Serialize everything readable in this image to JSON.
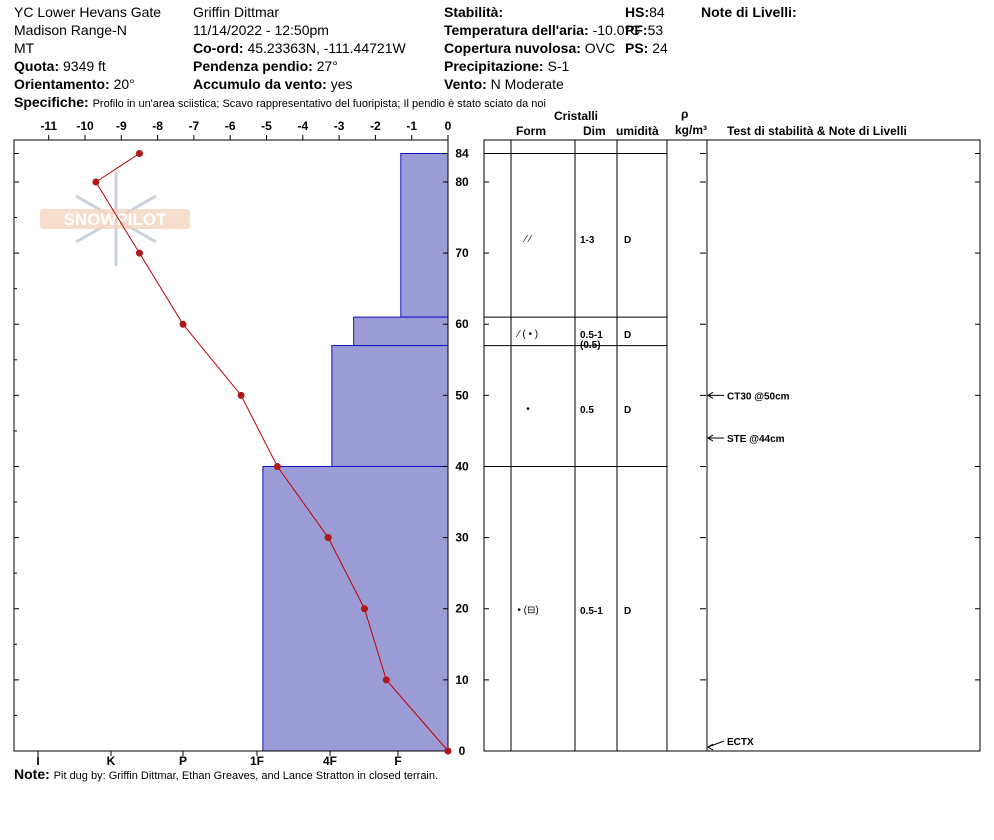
{
  "header": {
    "location": "YC Lower Hevans Gate",
    "range": "Madison Range-N",
    "state": "MT",
    "quota_label": "Quota:",
    "quota_value": "9349 ft",
    "orient_label": "Orientamento:",
    "orient_value": "20°",
    "observer": "Griffin Dittmar",
    "datetime": "11/14/2022 - 12:50pm",
    "coord_label": "Co-ord:",
    "coord_value": "45.23363N, -111.44721W",
    "slope_label": "Pendenza pendio:",
    "slope_value": "27°",
    "wind_load_label": "Accumulo da vento:",
    "wind_load_value": "yes",
    "stability_label": "Stabilità:",
    "stability_value": "",
    "air_temp_label": "Temperatura dell'aria:",
    "air_temp_value": "-10.0°C",
    "cloud_label": "Copertura nuvolosa:",
    "cloud_value": "OVC",
    "precip_label": "Precipitazione:",
    "precip_value": "S-1",
    "wind_label": "Vento:",
    "wind_value": "N Moderate",
    "hs_label": "HS:",
    "hs_value": "84",
    "pf_label": "PF:",
    "pf_value": "53",
    "ps_label": "PS:",
    "ps_value": "24",
    "notes_label": "Note di Livelli:",
    "spec_label": "Specifiche:",
    "spec_value": "Profilo in un'area sciistica; Scavo rappresentativo del fuoripista; Il pendio è stato sciato da noi",
    "footer_label": "Note:",
    "footer_value": "Pit dug by: Griffin Dittmar, Ethan Greaves, and Lance Stratton in closed terrain."
  },
  "table_headers": {
    "crystals": "Cristalli",
    "form": "Form",
    "dim": "Dim",
    "humidity": "umidità",
    "rho": "ρ",
    "rho_unit": "kg/m³",
    "tests": "Test di stabilità & Note di Livelli"
  },
  "logo_text": "SNOWPILOT",
  "colors": {
    "hardness_fill": "#9b9bd6",
    "hardness_stroke": "#1010c0",
    "temp_line": "#c00000",
    "temp_point": "#b01818"
  },
  "chart_data": {
    "type": "snow-profile",
    "y_axis": {
      "label": "",
      "range": [
        0,
        84
      ],
      "ticks": [
        0,
        10,
        20,
        30,
        40,
        50,
        60,
        70,
        80,
        84
      ]
    },
    "temperature_axis": {
      "range": [
        -12,
        0
      ],
      "ticks": [
        -11,
        -10,
        -9,
        -8,
        -7,
        -6,
        -5,
        -4,
        -3,
        -2,
        -1,
        0
      ]
    },
    "hardness_axis": {
      "ticks": [
        "I",
        "K",
        "P",
        "1F",
        "4F",
        "F"
      ]
    },
    "temperature_profile": [
      {
        "depth": 84,
        "temp": -8.5
      },
      {
        "depth": 80,
        "temp": -9.7
      },
      {
        "depth": 70,
        "temp": -8.5
      },
      {
        "depth": 60,
        "temp": -7.3
      },
      {
        "depth": 50,
        "temp": -5.7
      },
      {
        "depth": 40,
        "temp": -4.7
      },
      {
        "depth": 30,
        "temp": -3.3
      },
      {
        "depth": 20,
        "temp": -2.3
      },
      {
        "depth": 10,
        "temp": -1.7
      },
      {
        "depth": 0,
        "temp": 0
      }
    ],
    "hardness_layers": [
      {
        "top": 84,
        "bottom": 61,
        "hardness": "F",
        "temp_equiv": -1.3
      },
      {
        "top": 61,
        "bottom": 57,
        "hardness": "F+",
        "temp_equiv": -2.6
      },
      {
        "top": 57,
        "bottom": 40,
        "hardness": "4F",
        "temp_equiv": -3.2
      },
      {
        "top": 40,
        "bottom": 0,
        "hardness": "1F-",
        "temp_equiv": -5.1
      }
    ],
    "layer_rows": [
      {
        "top": 84,
        "bottom": 61,
        "form": "⁄ ⁄",
        "dim": "1-3",
        "dim2": "",
        "humidity": "D"
      },
      {
        "top": 61,
        "bottom": 57,
        "form": "⁄ ( • )",
        "dim": "0.5-1",
        "dim2": "(0.5)",
        "humidity": "D"
      },
      {
        "top": 57,
        "bottom": 40,
        "form": "•",
        "dim": "0.5",
        "dim2": "",
        "humidity": "D"
      },
      {
        "top": 40,
        "bottom": 0,
        "form": "• (⊟)",
        "dim": "0.5-1",
        "dim2": "",
        "humidity": "D"
      }
    ],
    "stability_tests": [
      {
        "depth": 50,
        "label": "CT30 @50cm"
      },
      {
        "depth": 44,
        "label": "STE @44cm"
      },
      {
        "depth": 1,
        "label": "ECTX"
      }
    ]
  }
}
